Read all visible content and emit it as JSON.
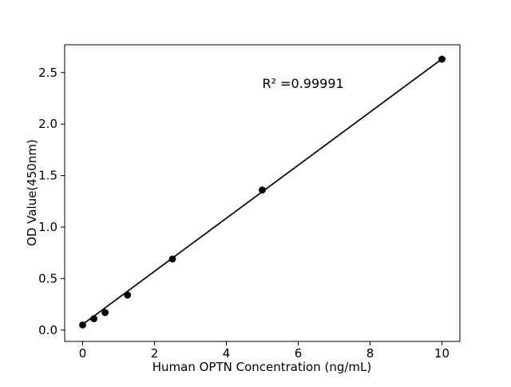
{
  "chart_data": {
    "type": "scatter",
    "title": "",
    "xlabel": "Human OPTN Concentration (ng/mL)",
    "ylabel": "OD Value(450nm)",
    "x": [
      0,
      0.313,
      0.625,
      1.25,
      2.5,
      5,
      10
    ],
    "y": [
      0.05,
      0.11,
      0.17,
      0.34,
      0.69,
      1.36,
      2.63
    ],
    "fit_line": {
      "x": [
        0,
        10
      ],
      "y": [
        0.055,
        2.632
      ]
    },
    "annotation": {
      "text": "R² =0.99991",
      "x": 5,
      "y": 2.35
    },
    "xlim": [
      -0.5,
      10.5
    ],
    "ylim": [
      -0.11,
      2.77
    ],
    "xticks": [
      0,
      2,
      4,
      6,
      8,
      10
    ],
    "yticks": [
      0.0,
      0.5,
      1.0,
      1.5,
      2.0,
      2.5
    ],
    "grid": false,
    "legend": null,
    "marker_color": "#000000",
    "line_color": "#000000",
    "axis_color": "#000000",
    "background_color": "#ffffff"
  }
}
